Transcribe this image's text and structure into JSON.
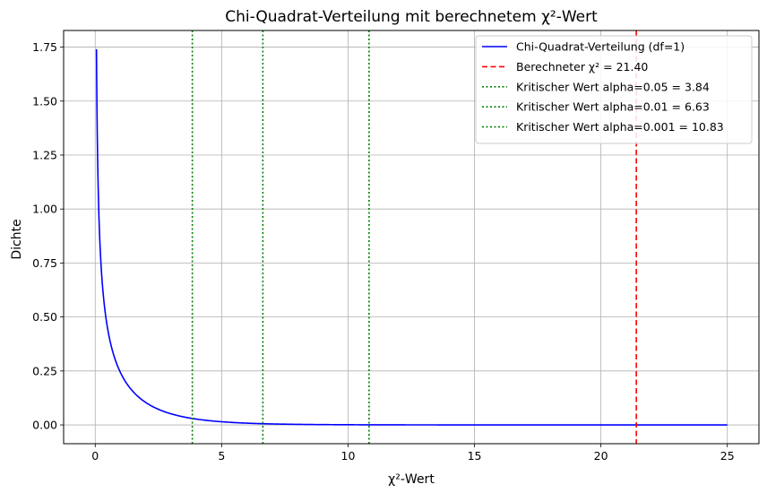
{
  "chart_data": {
    "type": "line",
    "title": "Chi-Quadrat-Verteilung mit berechnetem χ²-Wert",
    "xlabel": "χ²-Wert",
    "ylabel": "Dichte",
    "xlim": [
      -1.25,
      26.25
    ],
    "ylim": [
      -0.087,
      1.827
    ],
    "x_ticks": [
      0,
      5,
      10,
      15,
      20,
      25
    ],
    "y_ticks": [
      0.0,
      0.25,
      0.5,
      0.75,
      1.0,
      1.25,
      1.5,
      1.75
    ],
    "x_tick_labels": [
      "0",
      "5",
      "10",
      "15",
      "20",
      "25"
    ],
    "y_tick_labels": [
      "0.00",
      "0.25",
      "0.50",
      "0.75",
      "1.00",
      "1.25",
      "1.50",
      "1.75"
    ],
    "grid": true,
    "legend_position": "top-right",
    "series": [
      {
        "name": "Chi-Quadrat-Verteilung (df=1)",
        "kind": "curve",
        "df": 1,
        "x_range": [
          0.05,
          25
        ],
        "color": "#0000ff",
        "style": "solid"
      },
      {
        "name": "Berechneter χ² = 21.40",
        "kind": "vline",
        "x": 21.4,
        "color": "#ff0000",
        "style": "dashed"
      },
      {
        "name": "Kritischer Wert alpha=0.05 = 3.84",
        "kind": "vline",
        "x": 3.84,
        "color": "#008000",
        "style": "dotted"
      },
      {
        "name": "Kritischer Wert alpha=0.01 = 6.63",
        "kind": "vline",
        "x": 6.63,
        "color": "#008000",
        "style": "dotted"
      },
      {
        "name": "Kritischer Wert alpha=0.001 = 10.83",
        "kind": "vline",
        "x": 10.83,
        "color": "#008000",
        "style": "dotted"
      }
    ]
  }
}
